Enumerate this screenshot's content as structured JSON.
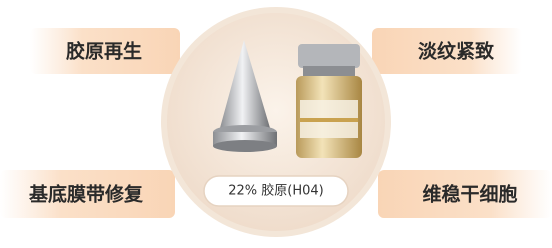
{
  "labels": {
    "top_left": "胶原再生",
    "top_right": "淡纹紧致",
    "bottom_left": "基底膜带修复",
    "bottom_right": "维稳干细胞"
  },
  "product_label": "22% 胶原(H04)"
}
